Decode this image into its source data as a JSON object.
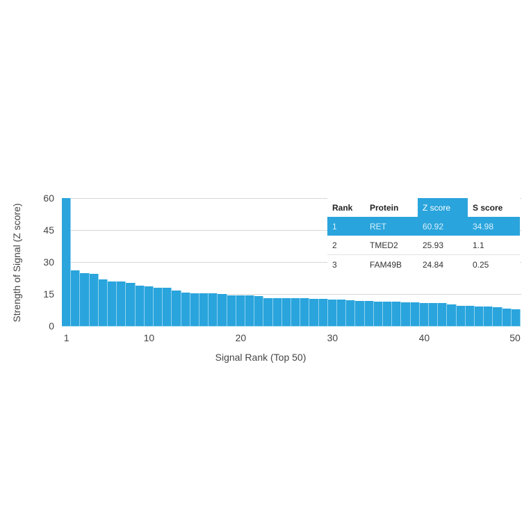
{
  "chart_data": {
    "type": "bar",
    "title": "",
    "xlabel": "Signal Rank (Top 50)",
    "ylabel": "Strength of Signal (Z score)",
    "ylim": [
      0,
      60
    ],
    "yticks": [
      0,
      15,
      30,
      45,
      60
    ],
    "xticks": [
      1,
      10,
      20,
      30,
      40,
      50
    ],
    "grid": true,
    "bar_color": "#2aa4dc",
    "categories": [
      1,
      2,
      3,
      4,
      5,
      6,
      7,
      8,
      9,
      10,
      11,
      12,
      13,
      14,
      15,
      16,
      17,
      18,
      19,
      20,
      21,
      22,
      23,
      24,
      25,
      26,
      27,
      28,
      29,
      30,
      31,
      32,
      33,
      34,
      35,
      36,
      37,
      38,
      39,
      40,
      41,
      42,
      43,
      44,
      45,
      46,
      47,
      48,
      49,
      50
    ],
    "values": [
      60.92,
      25.93,
      24.84,
      24.5,
      22.0,
      21.0,
      20.8,
      20.2,
      19.0,
      18.5,
      18.0,
      17.8,
      16.5,
      15.6,
      15.4,
      15.3,
      15.2,
      15.0,
      14.4,
      14.3,
      14.2,
      13.9,
      13.2,
      13.1,
      13.0,
      12.9,
      12.9,
      12.8,
      12.6,
      12.5,
      12.4,
      12.2,
      11.8,
      11.6,
      11.5,
      11.4,
      11.3,
      11.2,
      11.0,
      10.9,
      10.8,
      10.7,
      10.0,
      9.5,
      9.3,
      9.2,
      9.0,
      8.9,
      8.0,
      7.8
    ],
    "table": {
      "headers": [
        "Rank",
        "Protein",
        "Z score",
        "S score"
      ],
      "rows": [
        [
          "1",
          "RET",
          "60.92",
          "34.98"
        ],
        [
          "2",
          "TMED2",
          "25.93",
          "1.1"
        ],
        [
          "3",
          "FAM49B",
          "24.84",
          "0.25"
        ]
      ],
      "highlight_row": 0,
      "highlight_column": 2
    }
  }
}
